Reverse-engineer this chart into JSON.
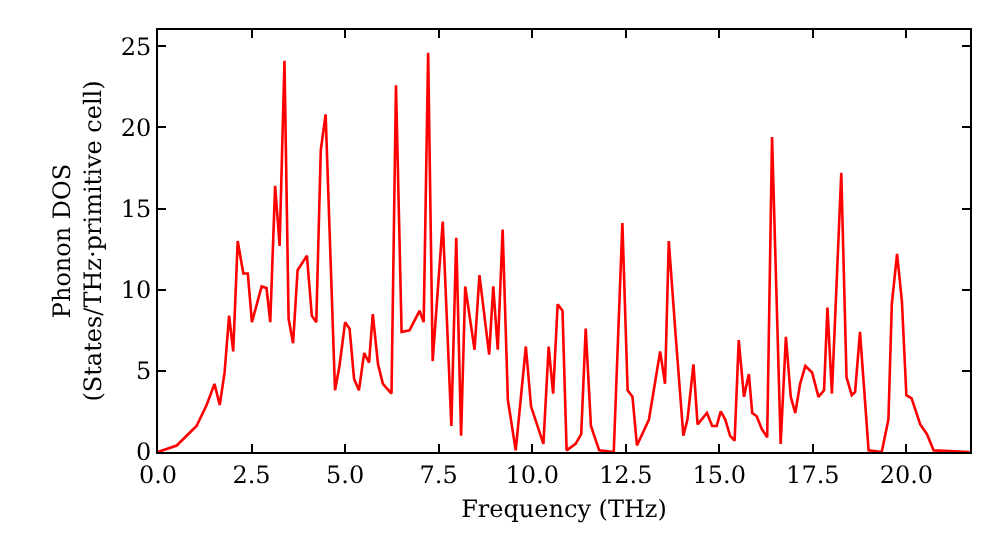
{
  "chart_data": {
    "type": "line",
    "xlabel": "Frequency (THz)",
    "ylabel": "Phonon DOS\n(States/THz·primitive cell)",
    "x": [
      0.0,
      0.5,
      1.03,
      1.3,
      1.51,
      1.65,
      1.78,
      1.9,
      2.01,
      2.13,
      2.28,
      2.4,
      2.51,
      2.77,
      2.9,
      3.0,
      3.13,
      3.25,
      3.38,
      3.49,
      3.61,
      3.73,
      3.98,
      4.11,
      4.23,
      4.35,
      4.48,
      4.73,
      4.85,
      5.0,
      5.12,
      5.24,
      5.37,
      5.51,
      5.64,
      5.74,
      5.88,
      6.01,
      6.24,
      6.36,
      6.51,
      6.72,
      6.99,
      7.1,
      7.22,
      7.34,
      7.61,
      7.84,
      7.97,
      8.1,
      8.21,
      8.46,
      8.59,
      8.85,
      8.96,
      9.08,
      9.21,
      9.35,
      9.56,
      9.83,
      9.97,
      10.3,
      10.44,
      10.56,
      10.68,
      10.81,
      10.92,
      11.16,
      11.31,
      11.43,
      11.57,
      11.79,
      12.18,
      12.41,
      12.55,
      12.68,
      12.8,
      13.12,
      13.42,
      13.55,
      13.65,
      13.83,
      14.04,
      14.15,
      14.31,
      14.42,
      14.67,
      14.81,
      14.93,
      15.04,
      15.16,
      15.29,
      15.41,
      15.52,
      15.66,
      15.79,
      15.88,
      16.0,
      16.14,
      16.28,
      16.41,
      16.64,
      16.78,
      16.91,
      17.03,
      17.16,
      17.3,
      17.48,
      17.65,
      17.8,
      17.89,
      18.01,
      18.26,
      18.4,
      18.54,
      18.63,
      18.76,
      18.99,
      19.34,
      19.52,
      19.61,
      19.75,
      19.88,
      20.0,
      20.14,
      20.37,
      20.55,
      20.73,
      21.69
    ],
    "series": [
      {
        "color": "#ff0000",
        "values": [
          0.0,
          0.4,
          1.6,
          2.9,
          4.2,
          2.9,
          4.9,
          8.4,
          6.2,
          13.0,
          11.0,
          11.0,
          8.0,
          10.2,
          10.1,
          8.0,
          16.4,
          12.7,
          24.1,
          8.2,
          6.7,
          11.2,
          12.1,
          8.4,
          8.0,
          18.6,
          20.8,
          3.8,
          5.3,
          8.0,
          7.6,
          4.5,
          3.8,
          6.1,
          5.5,
          8.5,
          5.4,
          4.2,
          3.6,
          22.6,
          7.4,
          7.5,
          8.7,
          8.0,
          24.6,
          5.6,
          14.2,
          1.6,
          13.2,
          1.0,
          10.2,
          6.3,
          10.9,
          6.0,
          10.2,
          6.3,
          13.7,
          3.2,
          0.1,
          6.5,
          2.8,
          0.5,
          6.5,
          3.6,
          9.1,
          8.7,
          0.1,
          0.5,
          1.1,
          7.6,
          1.6,
          0.1,
          0.0,
          14.1,
          3.8,
          3.4,
          0.4,
          2.0,
          6.2,
          4.2,
          13.0,
          7.3,
          1.0,
          2.0,
          5.4,
          1.7,
          2.4,
          1.6,
          1.6,
          2.5,
          2.0,
          1.0,
          0.7,
          6.9,
          3.4,
          4.8,
          2.4,
          2.2,
          1.4,
          0.9,
          19.4,
          0.5,
          7.1,
          3.4,
          2.4,
          4.2,
          5.3,
          4.9,
          3.4,
          3.8,
          8.9,
          3.6,
          17.2,
          4.6,
          3.5,
          3.7,
          7.4,
          0.1,
          0.0,
          2.0,
          9.1,
          12.2,
          9.3,
          3.5,
          3.3,
          1.7,
          1.1,
          0.1,
          0.0
        ]
      }
    ],
    "xlim": [
      0,
      21.7
    ],
    "ylim": [
      0,
      26
    ],
    "xticks": [
      {
        "value": 0,
        "label": "0.0"
      },
      {
        "value": 2.5,
        "label": "2.5"
      },
      {
        "value": 5,
        "label": "5.0"
      },
      {
        "value": 7.5,
        "label": "7.5"
      },
      {
        "value": 10,
        "label": "10.0"
      },
      {
        "value": 12.5,
        "label": "12.5"
      },
      {
        "value": 15,
        "label": "15.0"
      },
      {
        "value": 17.5,
        "label": "17.5"
      },
      {
        "value": 20,
        "label": "20.0"
      }
    ],
    "yticks": [
      0,
      5,
      10,
      15,
      20,
      25
    ],
    "marker": "none",
    "line_style": "solid"
  }
}
